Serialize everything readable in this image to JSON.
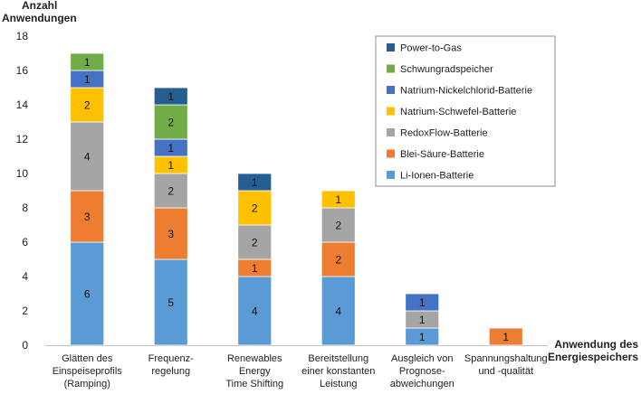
{
  "chart_data": {
    "type": "bar",
    "stacked": true,
    "ylabel": [
      "Anzahl",
      "Anwendungen"
    ],
    "xlabel": [
      "Anwendung des",
      "Energiespeichers"
    ],
    "ylim": [
      0,
      18
    ],
    "yticks": [
      0,
      2,
      4,
      6,
      8,
      10,
      12,
      14,
      16,
      18
    ],
    "categories": [
      [
        "Glätten des",
        "Einspeiseprofils",
        "(Ramping)"
      ],
      [
        "Frequenz-",
        "regelung"
      ],
      [
        "Renewables",
        "Energy",
        "Time Shifting"
      ],
      [
        "Bereitstellung",
        "einer konstanten",
        "Leistung"
      ],
      [
        "Ausgleich von",
        "Prognose-",
        "abweichungen"
      ],
      [
        "Spannungshaltung",
        "und -qualität"
      ]
    ],
    "series": [
      {
        "name": "Li-Ionen-Batterie",
        "color": "#5B9BD5",
        "values": [
          6,
          5,
          4,
          4,
          1,
          0
        ]
      },
      {
        "name": "Blei-Säure-Batterie",
        "color": "#ED7D31",
        "values": [
          3,
          3,
          1,
          2,
          0,
          1
        ]
      },
      {
        "name": "RedoxFlow-Batterie",
        "color": "#A5A5A5",
        "values": [
          4,
          2,
          2,
          2,
          1,
          0
        ]
      },
      {
        "name": "Natrium-Schwefel-Batterie",
        "color": "#FFC000",
        "values": [
          2,
          1,
          2,
          1,
          0,
          0
        ]
      },
      {
        "name": "Natrium-Nickelchlorid-Batterie",
        "color": "#4472C4",
        "values": [
          1,
          1,
          0,
          0,
          1,
          0
        ]
      },
      {
        "name": "Schwungradspeicher",
        "color": "#70AD47",
        "values": [
          1,
          2,
          0,
          0,
          0,
          0
        ]
      },
      {
        "name": "Power-to-Gas",
        "color": "#255E91",
        "values": [
          0,
          1,
          1,
          0,
          0,
          0
        ]
      }
    ],
    "legend_order": [
      "Power-to-Gas",
      "Schwungradspeicher",
      "Natrium-Nickelchlorid-Batterie",
      "Natrium-Schwefel-Batterie",
      "RedoxFlow-Batterie",
      "Blei-Säure-Batterie",
      "Li-Ionen-Batterie"
    ],
    "legend_position": "top-right",
    "grid": false
  }
}
